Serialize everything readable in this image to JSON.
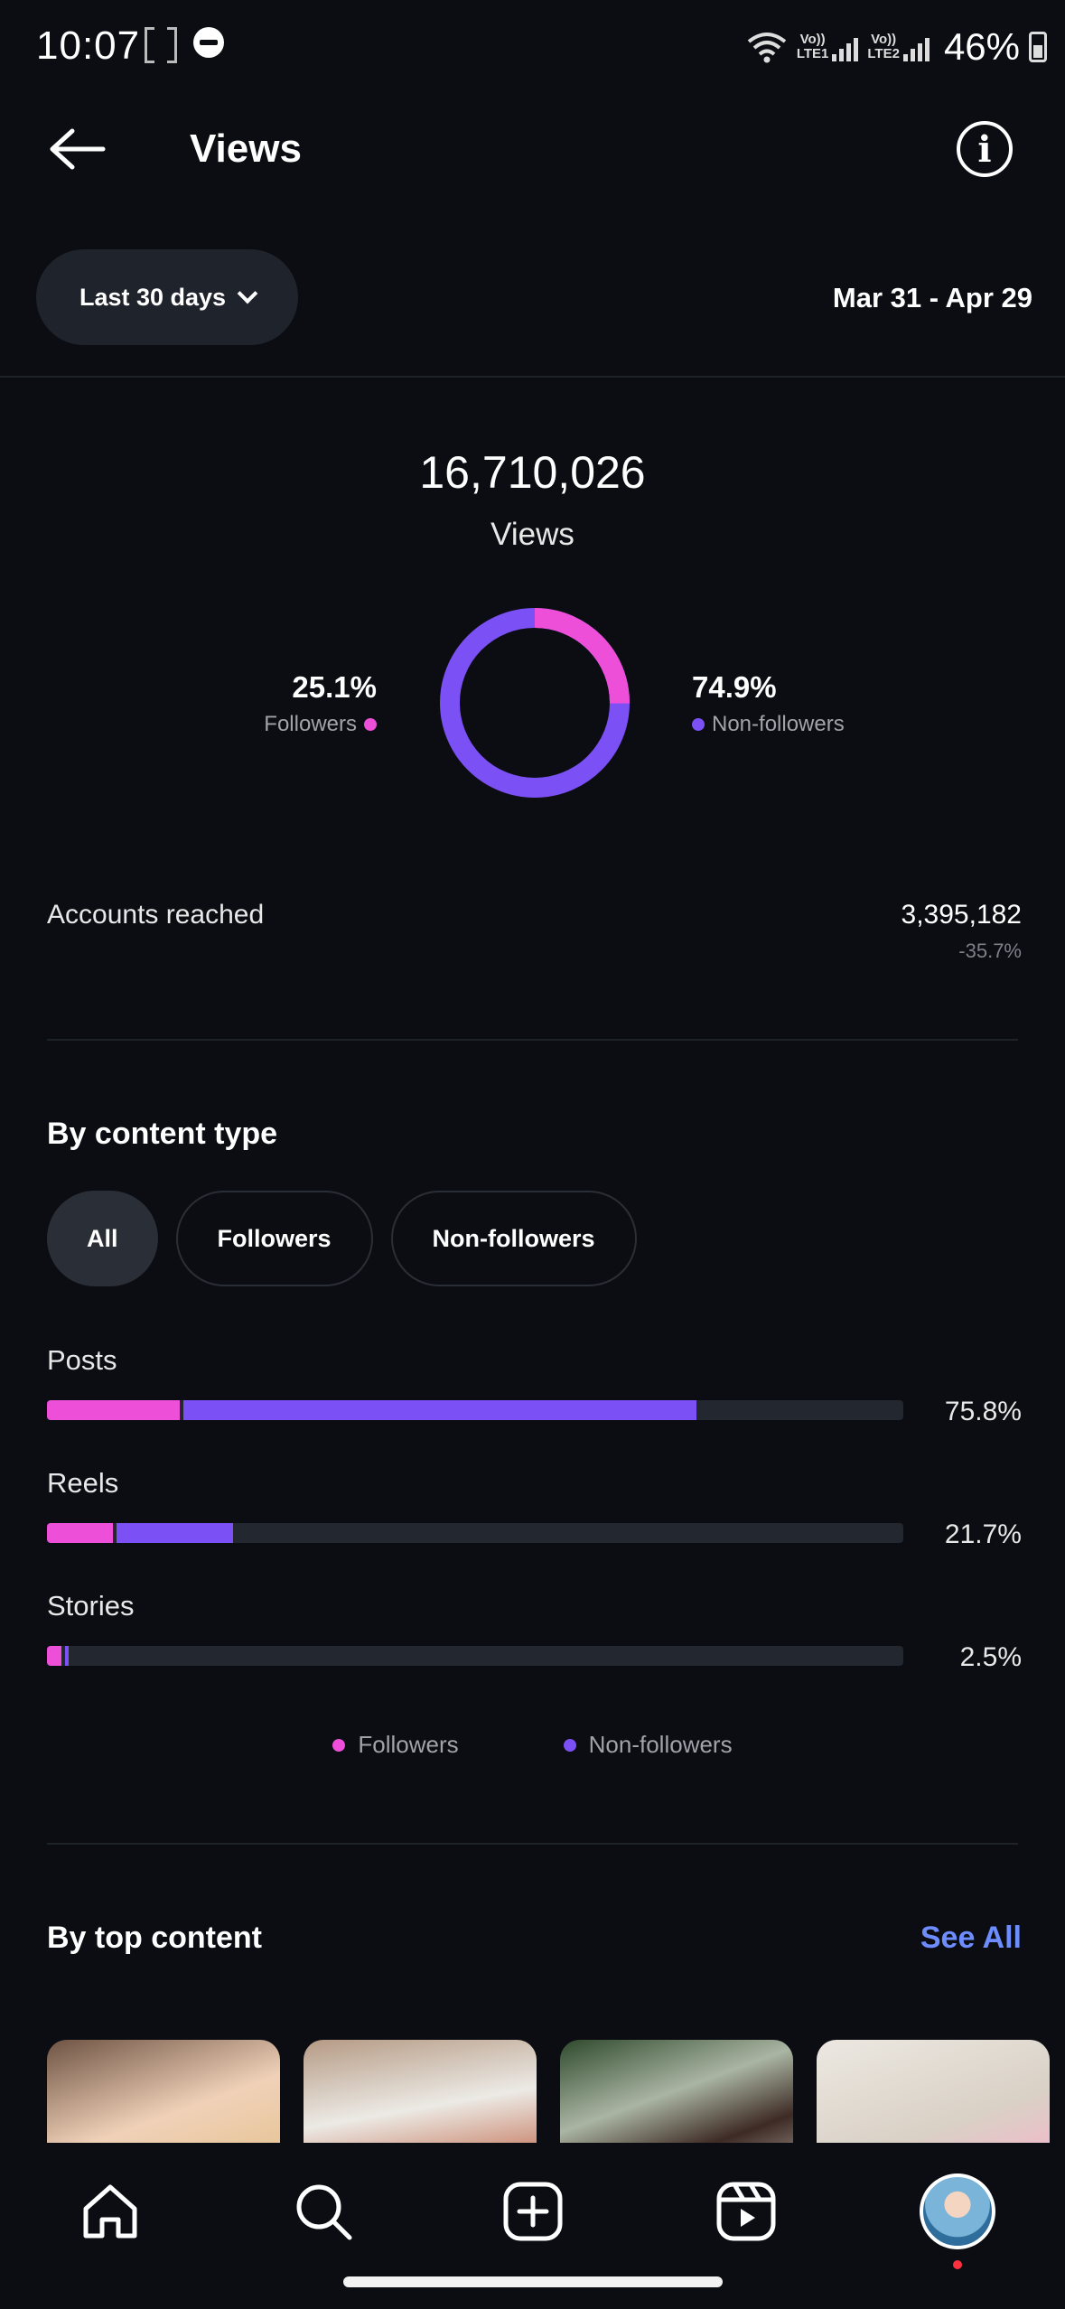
{
  "status_bar": {
    "time": "10:07",
    "sim1_tag": "Vo))\nLTE1",
    "sim2_tag": "Vo))\nLTE2",
    "battery": "46%",
    "icons": [
      "screen-record-icon",
      "dnd-icon",
      "wifi-icon",
      "signal-icon",
      "battery-icon"
    ]
  },
  "header": {
    "title": "Views",
    "back_icon": "back-arrow-icon",
    "info_icon": "info-icon"
  },
  "range": {
    "selected": "Last 30 days",
    "dates": "Mar 31 - Apr 29"
  },
  "summary": {
    "total": "16,710,026",
    "label": "Views",
    "followers_pct": "25.1%",
    "followers_label": "Followers",
    "followers_fraction": 0.251,
    "non_followers_pct": "74.9%",
    "non_followers_label": "Non-followers",
    "accounts_reached_label": "Accounts reached",
    "accounts_reached_value": "3,395,182",
    "accounts_reached_change": "-35.7%"
  },
  "content_type": {
    "title": "By content type",
    "filters": [
      "All",
      "Followers",
      "Non-followers"
    ],
    "active_filter": "All",
    "rows": [
      {
        "label": "Posts",
        "pct": "75.8%",
        "followers_share": 0.155,
        "non_followers_share": 0.603
      },
      {
        "label": "Reels",
        "pct": "21.7%",
        "followers_share": 0.077,
        "non_followers_share": 0.14
      },
      {
        "label": "Stories",
        "pct": "2.5%",
        "followers_share": 0.017,
        "non_followers_share": 0.008
      }
    ],
    "legend": [
      "Followers",
      "Non-followers"
    ]
  },
  "top_content": {
    "title": "By top content",
    "see_all": "See All",
    "thumbnails": 4
  },
  "colors": {
    "followers": "#ee4fd8",
    "non_followers": "#7b50f5",
    "link": "#6d8dff",
    "background": "#0b0d12"
  },
  "bottom_nav": [
    "home-icon",
    "search-icon",
    "create-icon",
    "reels-icon",
    "profile-avatar"
  ]
}
